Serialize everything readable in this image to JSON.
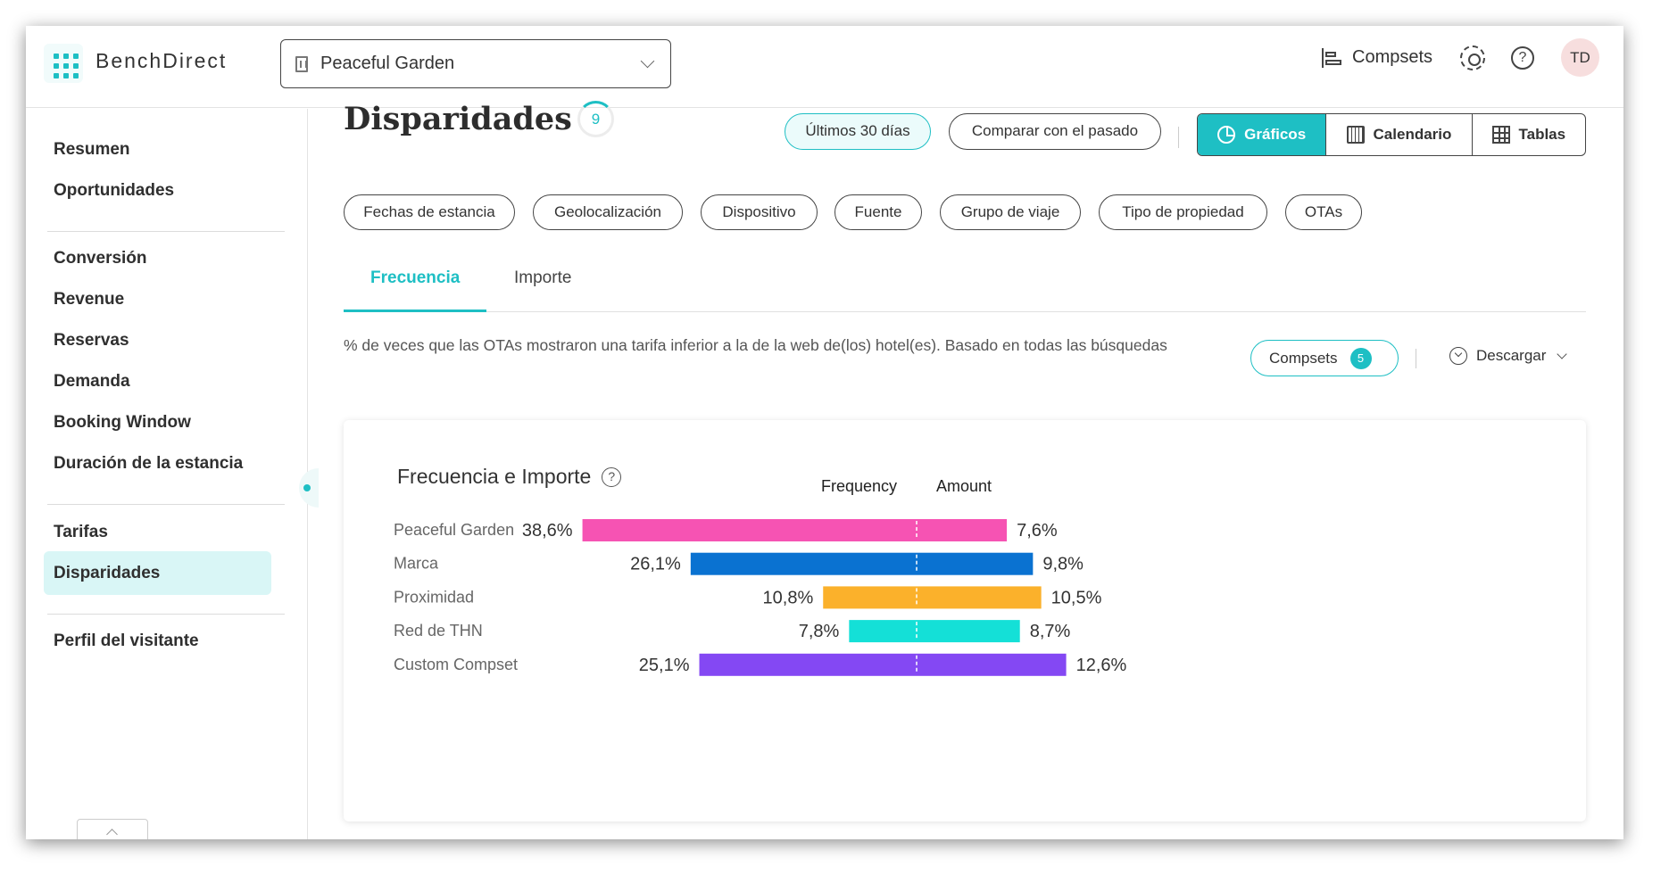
{
  "header": {
    "brand": "BenchDirect",
    "hotel": "Peaceful Garden",
    "compsets_label": "Compsets",
    "avatar_initials": "TD"
  },
  "sidebar": {
    "items": [
      {
        "label": "Resumen"
      },
      {
        "label": "Oportunidades"
      },
      {
        "label": "Conversión"
      },
      {
        "label": "Revenue"
      },
      {
        "label": "Reservas"
      },
      {
        "label": "Demanda"
      },
      {
        "label": "Booking Window"
      },
      {
        "label": "Duración de la estancia"
      },
      {
        "label": "Tarifas"
      },
      {
        "label": "Disparidades",
        "active": true
      },
      {
        "label": "Perfil del visitante"
      }
    ]
  },
  "main": {
    "title": "Disparidades",
    "title_count": "9",
    "date_range": "Últimos 30 días",
    "compare": "Comparar con el pasado",
    "views": [
      "Gráficos",
      "Calendario",
      "Tablas"
    ],
    "filters": [
      "Fechas de estancia",
      "Geolocalización",
      "Dispositivo",
      "Fuente",
      "Grupo de viaje",
      "Tipo de propiedad",
      "OTAs"
    ],
    "tabs": [
      "Frecuencia",
      "Importe"
    ],
    "description": "% de veces que las OTAs mostraron una tarifa inferior a la de la web de(los) hotel(es). Basado en todas las búsquedas",
    "compsets_label": "Compsets",
    "compsets_count": "5",
    "download": "Descargar"
  },
  "card": {
    "title": "Frecuencia e Importe"
  },
  "colors": {
    "accent": "#1ebfc4"
  },
  "chart_data": {
    "type": "bar",
    "subtype": "diverging-horizontal",
    "left_header": "Frequency",
    "right_header": "Amount",
    "categories": [
      "Peaceful Garden",
      "Marca",
      "Proximidad",
      "Red de THN",
      "Custom Compset"
    ],
    "series": [
      {
        "name": "Frequency",
        "values": [
          38.6,
          26.1,
          10.8,
          7.8,
          25.1
        ],
        "labels": [
          "38,6%",
          "26,1%",
          "10,8%",
          "7,8%",
          "25,1%"
        ]
      },
      {
        "name": "Amount",
        "values": [
          7.6,
          9.8,
          10.5,
          8.7,
          12.6
        ],
        "labels": [
          "7,6%",
          "9,8%",
          "10,5%",
          "8,7%",
          "12,6%"
        ]
      }
    ],
    "colors": [
      "#f653b3",
      "#0a72d1",
      "#fbb12b",
      "#14e0d7",
      "#8448f3"
    ],
    "grid": false
  }
}
